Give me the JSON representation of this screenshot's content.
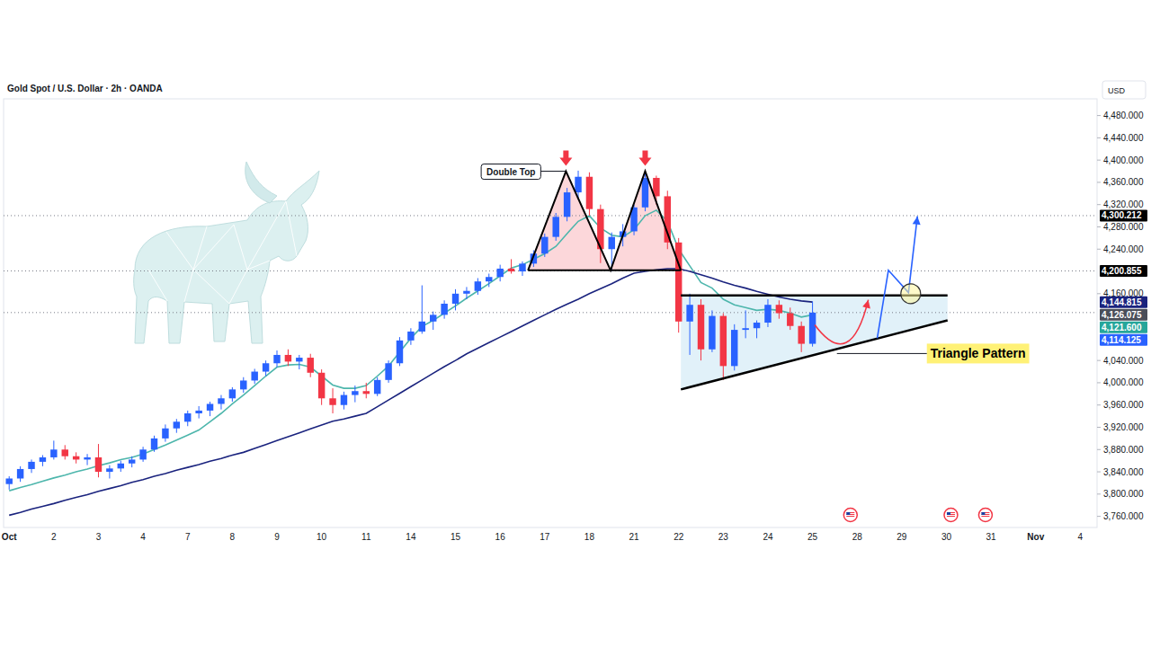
{
  "chart_data": {
    "type": "candlestick",
    "title": "Gold Spot / U.S. Dollar · 2h · OANDA",
    "y_label": "USD",
    "categories": [
      "Oct",
      null,
      null,
      null,
      "2",
      null,
      null,
      null,
      "3",
      null,
      null,
      null,
      "4",
      null,
      null,
      null,
      "7",
      null,
      null,
      null,
      "8",
      null,
      null,
      null,
      "9",
      null,
      null,
      null,
      "10",
      null,
      null,
      null,
      "11",
      null,
      null,
      null,
      "14",
      null,
      null,
      null,
      "15",
      null,
      null,
      null,
      "16",
      null,
      null,
      null,
      "17",
      null,
      null,
      null,
      "18",
      null,
      null,
      null,
      "21",
      null,
      null,
      null,
      "22",
      null,
      null,
      null,
      "23",
      null,
      null,
      null,
      "24",
      null,
      null,
      null,
      "25",
      null,
      null,
      null,
      "28",
      null,
      null,
      null,
      "29",
      null,
      null,
      null,
      "30",
      null,
      null,
      null,
      "31",
      null,
      null,
      null,
      "Nov",
      null,
      null,
      null,
      "4",
      null
    ],
    "series": [
      {
        "type": "candlestick",
        "open": [
          3818,
          3828,
          3845,
          3858,
          3866,
          3880,
          3868,
          3862,
          3866,
          3840,
          3846,
          3855,
          3862,
          3880,
          3900,
          3918,
          3930,
          3945,
          3950,
          3962,
          3972,
          3988,
          4004,
          4020,
          4035,
          4050,
          4038,
          4045,
          4018,
          3972,
          3960,
          3978,
          3985,
          3980,
          4005,
          4035,
          4076,
          4092,
          4110,
          4122,
          4142,
          4160,
          4165,
          4182,
          4190,
          4205,
          4200,
          4214,
          4232,
          4262,
          4298,
          4342,
          4370,
          4312,
          4240,
          4262,
          4272,
          4315,
          4368,
          4335,
          4252,
          4110,
          4140,
          4060,
          4120,
          4030,
          4095,
          4098,
          4108,
          4140,
          4125,
          4102,
          4070,
          null,
          null,
          null,
          null,
          null,
          null,
          null,
          null,
          null,
          null,
          null,
          null,
          null,
          null,
          null,
          null,
          null,
          null,
          null,
          null,
          null,
          null,
          null,
          null,
          null
        ],
        "high": [
          3832,
          3850,
          3862,
          3870,
          3896,
          3888,
          3875,
          3872,
          3890,
          3852,
          3860,
          3868,
          3885,
          3905,
          3925,
          3935,
          3950,
          3958,
          3966,
          3978,
          3992,
          4010,
          4025,
          4040,
          4058,
          4060,
          4050,
          4052,
          4024,
          3990,
          3984,
          3995,
          4000,
          4010,
          4040,
          4082,
          4098,
          4175,
          4128,
          4148,
          4168,
          4172,
          4188,
          4196,
          4212,
          4222,
          4218,
          4238,
          4268,
          4305,
          4350,
          4381,
          4378,
          4320,
          4270,
          4285,
          4320,
          4381,
          4372,
          4345,
          4260,
          4160,
          4150,
          4130,
          4125,
          4105,
          4130,
          4112,
          4150,
          4148,
          4135,
          4110,
          4146,
          null,
          null,
          null,
          null,
          null,
          null,
          null,
          null,
          null,
          null,
          null,
          null,
          null,
          null,
          null,
          null,
          null,
          null,
          null,
          null,
          null,
          null,
          null,
          null,
          null
        ],
        "low": [
          3808,
          3822,
          3838,
          3850,
          3862,
          3862,
          3855,
          3852,
          3830,
          3828,
          3840,
          3848,
          3858,
          3876,
          3894,
          3910,
          3922,
          3936,
          3940,
          3952,
          3966,
          3982,
          3998,
          4012,
          4028,
          4030,
          4024,
          4010,
          3960,
          3945,
          3952,
          3965,
          3972,
          3976,
          4000,
          4030,
          4068,
          4088,
          4095,
          4115,
          4130,
          4150,
          4158,
          4172,
          4182,
          4196,
          4192,
          4208,
          4226,
          4255,
          4290,
          4330,
          4300,
          4215,
          4200,
          4245,
          4265,
          4308,
          4320,
          4240,
          4090,
          4050,
          4040,
          4055,
          4005,
          4022,
          4080,
          4080,
          4100,
          4115,
          4095,
          4055,
          4065,
          null,
          null,
          null,
          null,
          null,
          null,
          null,
          null,
          null,
          null,
          null,
          null,
          null,
          null,
          null,
          null,
          null,
          null,
          null,
          null,
          null,
          null,
          null,
          null,
          null
        ],
        "close": [
          3828,
          3845,
          3858,
          3866,
          3880,
          3868,
          3862,
          3866,
          3840,
          3846,
          3855,
          3862,
          3880,
          3900,
          3918,
          3930,
          3945,
          3950,
          3962,
          3972,
          3988,
          4004,
          4020,
          4035,
          4050,
          4038,
          4045,
          4018,
          3972,
          3960,
          3978,
          3985,
          3980,
          4005,
          4035,
          4076,
          4092,
          4110,
          4122,
          4142,
          4160,
          4165,
          4182,
          4190,
          4205,
          4200,
          4214,
          4232,
          4262,
          4298,
          4342,
          4370,
          4312,
          4240,
          4262,
          4272,
          4315,
          4368,
          4335,
          4252,
          4110,
          4140,
          4060,
          4120,
          4030,
          4095,
          4098,
          4108,
          4140,
          4125,
          4102,
          4070,
          4126,
          null,
          null,
          null,
          null,
          null,
          null,
          null,
          null,
          null,
          null,
          null,
          null,
          null,
          null,
          null,
          null,
          null,
          null,
          null,
          null,
          null,
          null,
          null,
          null,
          null
        ]
      },
      {
        "type": "line",
        "color": "#4db6ac",
        "values": [
          3806,
          3812,
          3817,
          3823,
          3829,
          3834,
          3840,
          3845,
          3851,
          3856,
          3862,
          3866,
          3872,
          3880,
          3888,
          3897,
          3906,
          3915,
          3930,
          3945,
          3962,
          3978,
          3995,
          4012,
          4028,
          4032,
          4033,
          4028,
          4012,
          3996,
          3990,
          3990,
          3995,
          4012,
          4030,
          4055,
          4080,
          4101,
          4112,
          4125,
          4138,
          4152,
          4165,
          4178,
          4192,
          4206,
          4212,
          4222,
          4232,
          4245,
          4268,
          4290,
          4300,
          4278,
          4265,
          4262,
          4275,
          4300,
          4310,
          4290,
          4240,
          4210,
          4180,
          4170,
          4150,
          4140,
          4135,
          4130,
          4132,
          4130,
          4125,
          4118,
          4122,
          null,
          null,
          null,
          null,
          null,
          null,
          null,
          null,
          null,
          null,
          null,
          null,
          null,
          null,
          null,
          null,
          null,
          null,
          null,
          null,
          null,
          null,
          null,
          null,
          null
        ]
      },
      {
        "type": "line",
        "color": "#1a237e",
        "values": [
          3762,
          3767,
          3773,
          3778,
          3783,
          3789,
          3794,
          3799,
          3805,
          3810,
          3815,
          3821,
          3826,
          3832,
          3837,
          3843,
          3848,
          3853,
          3859,
          3864,
          3870,
          3875,
          3882,
          3889,
          3896,
          3903,
          3910,
          3917,
          3924,
          3931,
          3935,
          3940,
          3945,
          3957,
          3969,
          3981,
          3993,
          4005,
          4017,
          4029,
          4040,
          4052,
          4062,
          4072,
          4082,
          4092,
          4102,
          4112,
          4122,
          4132,
          4141,
          4150,
          4160,
          4169,
          4178,
          4188,
          4197,
          4200,
          4203,
          4205,
          4205,
          4200,
          4194,
          4188,
          4181,
          4175,
          4170,
          4164,
          4159,
          4154,
          4150,
          4147,
          4145,
          null,
          null,
          null,
          null,
          null,
          null,
          null,
          null,
          null,
          null,
          null,
          null,
          null,
          null,
          null,
          null,
          null,
          null,
          null,
          null,
          null,
          null,
          null,
          null,
          null
        ]
      }
    ],
    "ylim": [
      3740,
      4510
    ],
    "yticks": [
      {
        "value": 4480,
        "label": "4,480.000"
      },
      {
        "value": 4440,
        "label": "4,440.000"
      },
      {
        "value": 4400,
        "label": "4,400.000"
      },
      {
        "value": 4360,
        "label": "4,360.000"
      },
      {
        "value": 4320,
        "label": "4,320.000"
      },
      {
        "value": 4280,
        "label": "4,280.000"
      },
      {
        "value": 4240,
        "label": "4,240.000"
      },
      {
        "value": 4160,
        "label": "4,160.000"
      },
      {
        "value": 4040,
        "label": "4,040.000"
      },
      {
        "value": 4000,
        "label": "4,000.000"
      },
      {
        "value": 3960,
        "label": "3,960.000"
      },
      {
        "value": 3920,
        "label": "3,920.000"
      },
      {
        "value": 3880,
        "label": "3,880.000"
      },
      {
        "value": 3840,
        "label": "3,840.000"
      },
      {
        "value": 3800,
        "label": "3,800.000"
      },
      {
        "value": 3760,
        "label": "3,760.000"
      }
    ],
    "grid": false,
    "price_tags": [
      {
        "value": 4300.212,
        "label": "4,300.212",
        "color": "#000000",
        "line_style": "dotted"
      },
      {
        "value": 4200.855,
        "label": "4,200.855",
        "color": "#000000",
        "line_style": "dotted"
      },
      {
        "value": 4144.815,
        "label": "4,144.815",
        "color": "#1a237e"
      },
      {
        "value": 4126.075,
        "label": "4,126.075",
        "color": "#4a4e59",
        "line_style": "dotted"
      },
      {
        "value": 4121.6,
        "label": "4,121.600",
        "color": "#26a69a"
      },
      {
        "value": 4114.125,
        "label": "4,114.125",
        "color": "#2962ff"
      }
    ],
    "annotations": [
      {
        "text": "Double Top",
        "points": [
          [
            46.5,
            4202
          ],
          [
            49.9,
            4380
          ],
          [
            53.9,
            4202
          ],
          [
            57.0,
            4380
          ],
          [
            60.2,
            4202
          ]
        ]
      },
      {
        "text": "Triangle Pattern",
        "upper": [
          [
            60.2,
            4157
          ],
          [
            84.1,
            4157
          ]
        ],
        "lower": [
          [
            60.2,
            3988
          ],
          [
            84.1,
            4112
          ]
        ]
      }
    ],
    "projections": [
      {
        "color": "#f23645",
        "points": [
          [
            72.2,
            4104
          ],
          [
            75.0,
            4072
          ],
          [
            77.0,
            4149
          ]
        ]
      },
      {
        "color": "#2962ff",
        "points": [
          [
            77.8,
            4080
          ],
          [
            78.8,
            4202
          ],
          [
            80.6,
            4162
          ],
          [
            81.4,
            4299
          ]
        ]
      }
    ],
    "target": [
      80.8,
      4160
    ],
    "events": [
      75.4,
      84.4,
      87.5
    ]
  }
}
